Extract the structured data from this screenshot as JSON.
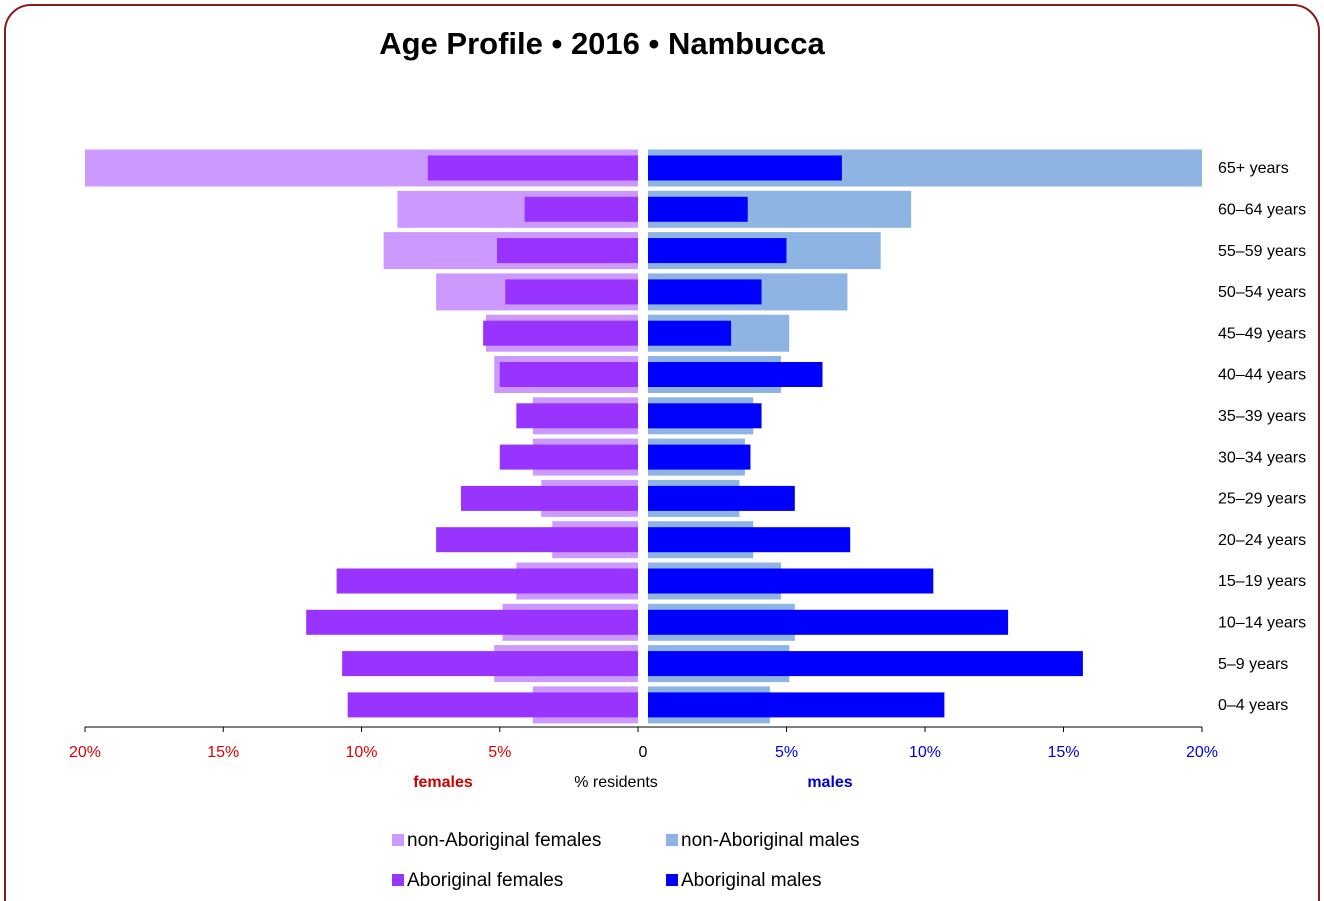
{
  "chart_data": {
    "type": "pyramid",
    "title": "Age Profile  •  2016  •  Nambucca",
    "categories": [
      "65+ years",
      "60–64 years",
      "55–59 years",
      "50–54 years",
      "45–49 years",
      "40–44 years",
      "35–39 years",
      "30–34 years",
      "25–29 years",
      "20–24 years",
      "15–19 years",
      "10–14 years",
      "5–9 years",
      "0–4 years"
    ],
    "series": [
      {
        "name": "non-Aboriginal females",
        "side": "left",
        "layer": "back",
        "color": "#cc99ff",
        "values": [
          20.0,
          8.7,
          9.2,
          7.3,
          5.5,
          5.2,
          3.8,
          3.8,
          3.5,
          3.1,
          4.4,
          4.9,
          5.2,
          3.8
        ]
      },
      {
        "name": "non-Aboriginal males",
        "side": "right",
        "layer": "back",
        "color": "#8db4e2",
        "values": [
          20.0,
          9.5,
          8.4,
          7.2,
          5.1,
          4.8,
          3.8,
          3.5,
          3.3,
          3.8,
          4.8,
          5.3,
          5.1,
          4.4
        ]
      },
      {
        "name": "Aboriginal females",
        "side": "left",
        "layer": "front",
        "color": "#9933ff",
        "values": [
          7.6,
          4.1,
          5.1,
          4.8,
          5.6,
          5.0,
          4.4,
          5.0,
          6.4,
          7.3,
          10.9,
          12.0,
          10.7,
          10.5
        ]
      },
      {
        "name": "Aboriginal males",
        "side": "right",
        "layer": "front",
        "color": "#0000ff",
        "values": [
          7.0,
          3.6,
          5.0,
          4.1,
          3.0,
          6.3,
          4.1,
          3.7,
          5.3,
          7.3,
          10.3,
          13.0,
          15.7,
          10.7
        ]
      }
    ],
    "xlim": [
      0,
      20
    ],
    "xticks_left": [
      {
        "value": 20,
        "label": "20%"
      },
      {
        "value": 15,
        "label": "15%"
      },
      {
        "value": 10,
        "label": "10%"
      },
      {
        "value": 5,
        "label": "5%"
      },
      0
    ],
    "xticks_right": [
      {
        "value": 5,
        "label": "5%"
      },
      {
        "value": 10,
        "label": "10%"
      },
      {
        "value": 15,
        "label": "15%"
      },
      {
        "value": 20,
        "label": "20%"
      }
    ],
    "left_label": "females",
    "right_label": "males",
    "x_label": "% residents",
    "left_color": "#e00000",
    "right_color": "#0000dd"
  }
}
